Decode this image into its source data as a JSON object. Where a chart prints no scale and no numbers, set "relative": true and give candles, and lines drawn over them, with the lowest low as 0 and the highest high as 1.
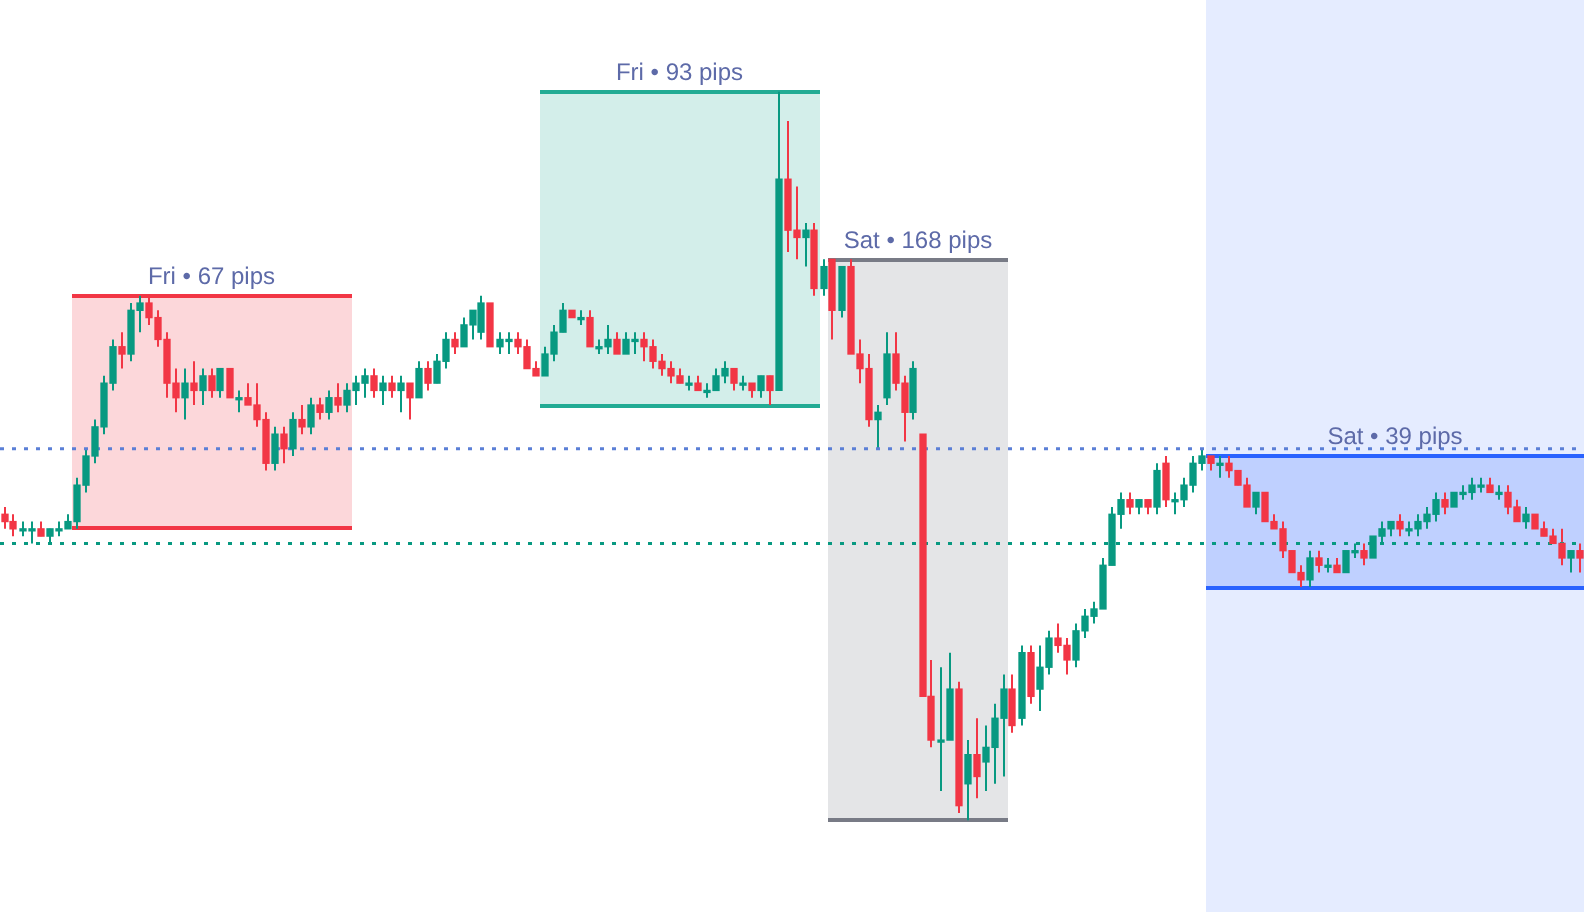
{
  "chart_data": {
    "type": "candlestick",
    "relative": true,
    "tick_labels": false,
    "categories": [
      null,
      null,
      null,
      null,
      null,
      null,
      null,
      null,
      null,
      null,
      null,
      null,
      null,
      null,
      null,
      null,
      null,
      null,
      null,
      null,
      null,
      null,
      null,
      null,
      null,
      null,
      null,
      null,
      null,
      null,
      null,
      null,
      null,
      null,
      null,
      null,
      null,
      null,
      null,
      null,
      null,
      null,
      null,
      null,
      null,
      null,
      null,
      null,
      null,
      null,
      null,
      null,
      null,
      null,
      null,
      null,
      null,
      null,
      null,
      null,
      null,
      null,
      null,
      null,
      null,
      null,
      null,
      null,
      null,
      null,
      null,
      null,
      null,
      null,
      null,
      null,
      null,
      null,
      null,
      null,
      null,
      null,
      null,
      null,
      null,
      null,
      null,
      null,
      null,
      null,
      null,
      null,
      null,
      null,
      null,
      null,
      null,
      null,
      null,
      null,
      null,
      null,
      null,
      null,
      null,
      null,
      null,
      null,
      null,
      null,
      null,
      null,
      null,
      null,
      null,
      null,
      null,
      null,
      null,
      null,
      null,
      null,
      null,
      null,
      null,
      null,
      null,
      null,
      null,
      null,
      null,
      null,
      null,
      null,
      null,
      null,
      null,
      null,
      null,
      null,
      null,
      null,
      null,
      null,
      null,
      null,
      null,
      null,
      null,
      null,
      null,
      null,
      null,
      null,
      null,
      null,
      null,
      null,
      null,
      null,
      null,
      null,
      null,
      null,
      null,
      null,
      null,
      null,
      null,
      null,
      null,
      null,
      null,
      null,
      null,
      null
    ],
    "annotations": [
      "Fri • 67 pips",
      "Fri • 93 pips",
      "Sat • 168 pips",
      "Sat • 39 pips"
    ],
    "ohlc": [
      [
        0.42,
        0.43,
        0.4,
        0.41
      ],
      [
        0.41,
        0.42,
        0.39,
        0.4
      ],
      [
        0.4,
        0.41,
        0.39,
        0.4
      ],
      [
        0.4,
        0.41,
        0.38,
        0.4
      ],
      [
        0.4,
        0.41,
        0.39,
        0.39
      ],
      [
        0.39,
        0.4,
        0.38,
        0.4
      ],
      [
        0.4,
        0.41,
        0.39,
        0.4
      ],
      [
        0.4,
        0.42,
        0.4,
        0.41
      ],
      [
        0.41,
        0.47,
        0.4,
        0.46
      ],
      [
        0.46,
        0.51,
        0.45,
        0.5
      ],
      [
        0.5,
        0.55,
        0.49,
        0.54
      ],
      [
        0.54,
        0.61,
        0.53,
        0.6
      ],
      [
        0.6,
        0.66,
        0.59,
        0.65
      ],
      [
        0.65,
        0.67,
        0.62,
        0.64
      ],
      [
        0.64,
        0.71,
        0.63,
        0.7
      ],
      [
        0.7,
        0.72,
        0.67,
        0.71
      ],
      [
        0.71,
        0.72,
        0.68,
        0.69
      ],
      [
        0.69,
        0.7,
        0.65,
        0.66
      ],
      [
        0.66,
        0.67,
        0.58,
        0.6
      ],
      [
        0.6,
        0.62,
        0.56,
        0.58
      ],
      [
        0.58,
        0.62,
        0.55,
        0.6
      ],
      [
        0.6,
        0.63,
        0.57,
        0.59
      ],
      [
        0.59,
        0.62,
        0.57,
        0.61
      ],
      [
        0.61,
        0.62,
        0.58,
        0.59
      ],
      [
        0.59,
        0.62,
        0.58,
        0.62
      ],
      [
        0.62,
        0.62,
        0.58,
        0.58
      ],
      [
        0.58,
        0.59,
        0.56,
        0.58
      ],
      [
        0.58,
        0.6,
        0.57,
        0.57
      ],
      [
        0.57,
        0.6,
        0.54,
        0.55
      ],
      [
        0.55,
        0.56,
        0.48,
        0.49
      ],
      [
        0.49,
        0.54,
        0.48,
        0.53
      ],
      [
        0.53,
        0.54,
        0.49,
        0.51
      ],
      [
        0.51,
        0.56,
        0.5,
        0.55
      ],
      [
        0.55,
        0.57,
        0.53,
        0.54
      ],
      [
        0.54,
        0.58,
        0.53,
        0.57
      ],
      [
        0.57,
        0.58,
        0.55,
        0.56
      ],
      [
        0.56,
        0.59,
        0.55,
        0.58
      ],
      [
        0.58,
        0.6,
        0.56,
        0.57
      ],
      [
        0.57,
        0.6,
        0.56,
        0.59
      ],
      [
        0.59,
        0.61,
        0.57,
        0.6
      ],
      [
        0.6,
        0.62,
        0.58,
        0.61
      ],
      [
        0.61,
        0.62,
        0.58,
        0.59
      ],
      [
        0.59,
        0.61,
        0.57,
        0.6
      ],
      [
        0.6,
        0.61,
        0.58,
        0.59
      ],
      [
        0.59,
        0.61,
        0.56,
        0.6
      ],
      [
        0.6,
        0.6,
        0.55,
        0.58
      ],
      [
        0.58,
        0.63,
        0.58,
        0.62
      ],
      [
        0.62,
        0.63,
        0.59,
        0.6
      ],
      [
        0.6,
        0.64,
        0.6,
        0.63
      ],
      [
        0.63,
        0.67,
        0.62,
        0.66
      ],
      [
        0.66,
        0.67,
        0.64,
        0.65
      ],
      [
        0.65,
        0.69,
        0.65,
        0.68
      ],
      [
        0.68,
        0.7,
        0.66,
        0.7
      ],
      [
        0.67,
        0.72,
        0.66,
        0.71
      ],
      [
        0.71,
        0.71,
        0.65,
        0.65
      ],
      [
        0.65,
        0.67,
        0.64,
        0.66
      ],
      [
        0.66,
        0.67,
        0.64,
        0.66
      ],
      [
        0.66,
        0.67,
        0.64,
        0.65
      ],
      [
        0.65,
        0.66,
        0.62,
        0.62
      ],
      [
        0.62,
        0.63,
        0.61,
        0.61
      ],
      [
        0.61,
        0.65,
        0.61,
        0.64
      ],
      [
        0.64,
        0.68,
        0.63,
        0.67
      ],
      [
        0.67,
        0.71,
        0.67,
        0.7
      ],
      [
        0.7,
        0.7,
        0.69,
        0.69
      ],
      [
        0.69,
        0.7,
        0.68,
        0.69
      ],
      [
        0.69,
        0.7,
        0.65,
        0.65
      ],
      [
        0.65,
        0.66,
        0.64,
        0.65
      ],
      [
        0.65,
        0.68,
        0.64,
        0.66
      ],
      [
        0.66,
        0.67,
        0.64,
        0.64
      ],
      [
        0.64,
        0.67,
        0.64,
        0.66
      ],
      [
        0.66,
        0.67,
        0.64,
        0.66
      ],
      [
        0.66,
        0.67,
        0.63,
        0.65
      ],
      [
        0.65,
        0.66,
        0.62,
        0.63
      ],
      [
        0.63,
        0.64,
        0.61,
        0.62
      ],
      [
        0.62,
        0.63,
        0.6,
        0.61
      ],
      [
        0.61,
        0.62,
        0.6,
        0.6
      ],
      [
        0.6,
        0.61,
        0.59,
        0.6
      ],
      [
        0.6,
        0.61,
        0.59,
        0.59
      ],
      [
        0.59,
        0.6,
        0.58,
        0.59
      ],
      [
        0.59,
        0.62,
        0.59,
        0.61
      ],
      [
        0.61,
        0.63,
        0.6,
        0.62
      ],
      [
        0.62,
        0.62,
        0.59,
        0.6
      ],
      [
        0.6,
        0.61,
        0.59,
        0.6
      ],
      [
        0.6,
        0.6,
        0.58,
        0.59
      ],
      [
        0.59,
        0.61,
        0.58,
        0.61
      ],
      [
        0.61,
        0.61,
        0.57,
        0.59
      ],
      [
        0.59,
        1.0,
        0.59,
        0.88
      ],
      [
        0.88,
        0.96,
        0.78,
        0.81
      ],
      [
        0.81,
        0.87,
        0.77,
        0.8
      ],
      [
        0.8,
        0.82,
        0.76,
        0.81
      ],
      [
        0.81,
        0.82,
        0.72,
        0.73
      ],
      [
        0.73,
        0.77,
        0.72,
        0.76
      ],
      [
        0.77,
        0.77,
        0.66,
        0.7
      ],
      [
        0.7,
        0.76,
        0.69,
        0.76
      ],
      [
        0.76,
        0.77,
        0.64,
        0.64
      ],
      [
        0.64,
        0.66,
        0.6,
        0.62
      ],
      [
        0.62,
        0.64,
        0.54,
        0.55
      ],
      [
        0.55,
        0.57,
        0.51,
        0.56
      ],
      [
        0.58,
        0.67,
        0.57,
        0.64
      ],
      [
        0.64,
        0.67,
        0.59,
        0.6
      ],
      [
        0.6,
        0.61,
        0.52,
        0.56
      ],
      [
        0.56,
        0.63,
        0.55,
        0.62
      ],
      [
        0.53,
        0.53,
        0.17,
        0.17
      ],
      [
        0.17,
        0.22,
        0.1,
        0.11
      ],
      [
        0.11,
        0.21,
        0.04,
        0.11
      ],
      [
        0.11,
        0.23,
        0.11,
        0.18
      ],
      [
        0.18,
        0.19,
        0.01,
        0.02
      ],
      [
        0.05,
        0.11,
        0.0,
        0.09
      ],
      [
        0.09,
        0.14,
        0.03,
        0.06
      ],
      [
        0.08,
        0.13,
        0.04,
        0.1
      ],
      [
        0.1,
        0.16,
        0.05,
        0.14
      ],
      [
        0.14,
        0.2,
        0.06,
        0.18
      ],
      [
        0.18,
        0.2,
        0.12,
        0.13
      ],
      [
        0.14,
        0.24,
        0.13,
        0.23
      ],
      [
        0.23,
        0.24,
        0.16,
        0.17
      ],
      [
        0.18,
        0.24,
        0.15,
        0.21
      ],
      [
        0.21,
        0.26,
        0.2,
        0.25
      ],
      [
        0.25,
        0.27,
        0.23,
        0.24
      ],
      [
        0.24,
        0.25,
        0.2,
        0.22
      ],
      [
        0.22,
        0.27,
        0.21,
        0.26
      ],
      [
        0.26,
        0.29,
        0.25,
        0.28
      ],
      [
        0.28,
        0.3,
        0.27,
        0.29
      ],
      [
        0.29,
        0.36,
        0.29,
        0.35
      ],
      [
        0.35,
        0.43,
        0.35,
        0.42
      ],
      [
        0.42,
        0.45,
        0.4,
        0.44
      ],
      [
        0.44,
        0.45,
        0.42,
        0.43
      ],
      [
        0.43,
        0.44,
        0.42,
        0.44
      ],
      [
        0.44,
        0.44,
        0.42,
        0.43
      ],
      [
        0.43,
        0.49,
        0.42,
        0.48
      ],
      [
        0.49,
        0.5,
        0.43,
        0.44
      ],
      [
        0.44,
        0.45,
        0.42,
        0.44
      ],
      [
        0.44,
        0.47,
        0.43,
        0.46
      ],
      [
        0.46,
        0.5,
        0.45,
        0.49
      ],
      [
        0.49,
        0.51,
        0.48,
        0.5
      ],
      [
        0.5,
        0.5,
        0.48,
        0.49
      ],
      [
        0.49,
        0.5,
        0.47,
        0.49
      ],
      [
        0.49,
        0.5,
        0.47,
        0.48
      ],
      [
        0.48,
        0.48,
        0.46,
        0.46
      ],
      [
        0.46,
        0.47,
        0.43,
        0.43
      ],
      [
        0.43,
        0.45,
        0.42,
        0.45
      ],
      [
        0.45,
        0.45,
        0.41,
        0.41
      ],
      [
        0.41,
        0.42,
        0.4,
        0.4
      ],
      [
        0.4,
        0.41,
        0.36,
        0.37
      ],
      [
        0.37,
        0.37,
        0.34,
        0.34
      ],
      [
        0.34,
        0.35,
        0.32,
        0.33
      ],
      [
        0.33,
        0.37,
        0.32,
        0.36
      ],
      [
        0.36,
        0.37,
        0.34,
        0.35
      ],
      [
        0.35,
        0.36,
        0.34,
        0.35
      ],
      [
        0.35,
        0.36,
        0.34,
        0.34
      ],
      [
        0.34,
        0.37,
        0.34,
        0.37
      ],
      [
        0.37,
        0.38,
        0.36,
        0.37
      ],
      [
        0.37,
        0.38,
        0.35,
        0.36
      ],
      [
        0.36,
        0.39,
        0.36,
        0.39
      ],
      [
        0.39,
        0.41,
        0.38,
        0.4
      ],
      [
        0.4,
        0.41,
        0.39,
        0.41
      ],
      [
        0.41,
        0.42,
        0.39,
        0.4
      ],
      [
        0.4,
        0.41,
        0.39,
        0.4
      ],
      [
        0.4,
        0.42,
        0.39,
        0.41
      ],
      [
        0.41,
        0.43,
        0.4,
        0.42
      ],
      [
        0.42,
        0.45,
        0.41,
        0.44
      ],
      [
        0.44,
        0.45,
        0.42,
        0.43
      ],
      [
        0.43,
        0.45,
        0.43,
        0.45
      ],
      [
        0.45,
        0.46,
        0.44,
        0.45
      ],
      [
        0.45,
        0.47,
        0.44,
        0.46
      ],
      [
        0.46,
        0.47,
        0.45,
        0.46
      ],
      [
        0.46,
        0.47,
        0.45,
        0.45
      ],
      [
        0.45,
        0.46,
        0.44,
        0.45
      ],
      [
        0.45,
        0.46,
        0.42,
        0.43
      ],
      [
        0.43,
        0.44,
        0.41,
        0.41
      ],
      [
        0.41,
        0.43,
        0.4,
        0.42
      ],
      [
        0.42,
        0.42,
        0.4,
        0.4
      ],
      [
        0.4,
        0.41,
        0.39,
        0.39
      ],
      [
        0.39,
        0.4,
        0.38,
        0.38
      ],
      [
        0.38,
        0.4,
        0.35,
        0.36
      ],
      [
        0.36,
        0.37,
        0.34,
        0.37
      ],
      [
        0.37,
        0.38,
        0.34,
        0.36
      ]
    ],
    "ref_lines": [
      {
        "axis": "y",
        "value": 0.51,
        "color": "#5b7fd6",
        "line_style": "dotted"
      },
      {
        "axis": "y",
        "value": 0.38,
        "color": "#089981",
        "line_style": "dotted"
      }
    ]
  }
}
